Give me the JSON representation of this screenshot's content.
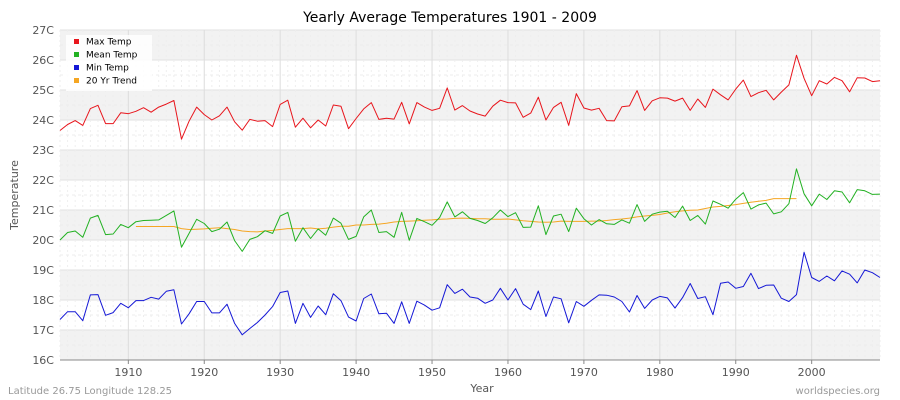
{
  "chart_data": {
    "type": "line",
    "title": "Yearly Average Temperatures 1901 - 2009",
    "xlabel": "Year",
    "ylabel": "Temperature",
    "xlim": [
      1901,
      2009
    ],
    "ylim": [
      16,
      27
    ],
    "x_ticks": [
      1910,
      1920,
      1930,
      1940,
      1950,
      1960,
      1970,
      1980,
      1990,
      2000
    ],
    "y_ticks": [
      "16C",
      "17C",
      "18C",
      "19C",
      "20C",
      "21C",
      "22C",
      "23C",
      "24C",
      "25C",
      "26C",
      "27C"
    ],
    "grid": true,
    "legend_position": "top-left",
    "series": [
      {
        "name": "Max Temp",
        "color": "#e8151c",
        "values": [
          23.65,
          23.85,
          23.98,
          23.82,
          24.38,
          24.49,
          23.88,
          23.88,
          24.24,
          24.21,
          24.29,
          24.41,
          24.26,
          24.43,
          24.53,
          24.65,
          23.36,
          23.96,
          24.43,
          24.18,
          24.0,
          24.14,
          24.43,
          23.94,
          23.66,
          24.02,
          23.96,
          23.98,
          23.78,
          24.52,
          24.66,
          23.76,
          24.06,
          23.74,
          24.0,
          23.8,
          24.5,
          24.46,
          23.71,
          24.05,
          24.37,
          24.58,
          24.02,
          24.06,
          24.03,
          24.59,
          23.87,
          24.58,
          24.43,
          24.32,
          24.39,
          25.07,
          24.33,
          24.48,
          24.3,
          24.2,
          24.13,
          24.46,
          24.66,
          24.58,
          24.57,
          24.09,
          24.23,
          24.76,
          24.0,
          24.42,
          24.59,
          23.82,
          24.88,
          24.4,
          24.33,
          24.39,
          23.98,
          23.97,
          24.44,
          24.47,
          24.98,
          24.32,
          24.64,
          24.74,
          24.73,
          24.63,
          24.73,
          24.32,
          24.7,
          24.42,
          25.03,
          24.84,
          24.67,
          25.03,
          25.33,
          24.78,
          24.91,
          24.99,
          24.67,
          24.93,
          25.17,
          26.16,
          25.39,
          24.81,
          25.31,
          25.2,
          25.42,
          25.31,
          24.94,
          25.41,
          25.4,
          25.28,
          25.31
        ]
      },
      {
        "name": "Mean Temp",
        "color": "#22b122",
        "values": [
          20.0,
          20.25,
          20.3,
          20.09,
          20.73,
          20.82,
          20.18,
          20.2,
          20.52,
          20.41,
          20.61,
          20.65,
          20.66,
          20.67,
          20.82,
          20.97,
          19.76,
          20.22,
          20.69,
          20.55,
          20.28,
          20.36,
          20.6,
          19.98,
          19.62,
          20.02,
          20.11,
          20.31,
          20.22,
          20.8,
          20.92,
          19.96,
          20.41,
          20.05,
          20.37,
          20.16,
          20.73,
          20.56,
          20.02,
          20.12,
          20.77,
          21.0,
          20.25,
          20.28,
          20.09,
          20.92,
          19.99,
          20.72,
          20.61,
          20.49,
          20.75,
          21.27,
          20.77,
          20.94,
          20.72,
          20.65,
          20.55,
          20.74,
          21.0,
          20.78,
          20.91,
          20.42,
          20.43,
          21.14,
          20.18,
          20.8,
          20.86,
          20.28,
          21.06,
          20.71,
          20.5,
          20.68,
          20.54,
          20.52,
          20.67,
          20.56,
          21.18,
          20.62,
          20.86,
          20.93,
          20.96,
          20.75,
          21.13,
          20.65,
          20.82,
          20.53,
          21.3,
          21.19,
          21.06,
          21.36,
          21.58,
          21.03,
          21.17,
          21.23,
          20.87,
          20.94,
          21.21,
          22.37,
          21.54,
          21.14,
          21.53,
          21.35,
          21.64,
          21.6,
          21.24,
          21.68,
          21.64,
          21.52,
          21.53
        ]
      },
      {
        "name": "Min Temp",
        "color": "#1518d6",
        "values": [
          17.35,
          17.61,
          17.61,
          17.31,
          18.17,
          18.18,
          17.49,
          17.58,
          17.89,
          17.74,
          17.98,
          17.98,
          18.09,
          18.03,
          18.29,
          18.34,
          17.2,
          17.54,
          17.95,
          17.95,
          17.57,
          17.57,
          17.86,
          17.22,
          16.84,
          17.05,
          17.25,
          17.5,
          17.78,
          18.25,
          18.3,
          17.22,
          17.89,
          17.42,
          17.8,
          17.51,
          18.21,
          17.98,
          17.43,
          17.3,
          18.05,
          18.2,
          17.54,
          17.56,
          17.22,
          17.94,
          17.22,
          17.96,
          17.83,
          17.66,
          17.74,
          18.51,
          18.22,
          18.36,
          18.1,
          18.06,
          17.89,
          18.0,
          18.39,
          18.0,
          18.38,
          17.86,
          17.68,
          18.3,
          17.45,
          18.1,
          18.04,
          17.24,
          17.95,
          17.79,
          17.99,
          18.17,
          18.16,
          18.1,
          17.95,
          17.6,
          18.15,
          17.72,
          18.0,
          18.12,
          18.07,
          17.73,
          18.08,
          18.55,
          18.05,
          18.11,
          17.51,
          18.56,
          18.6,
          18.39,
          18.45,
          18.89,
          18.38,
          18.49,
          18.5,
          18.06,
          17.95,
          18.18,
          19.59,
          18.75,
          18.62,
          18.8,
          18.64,
          18.97,
          18.86,
          18.57,
          19.0,
          18.91,
          18.75
        ]
      },
      {
        "name": "20 Yr Trend",
        "color": "#f5a623",
        "start_year": 1911,
        "values": [
          20.45,
          20.45,
          20.45,
          20.45,
          20.45,
          20.45,
          20.38,
          20.35,
          20.36,
          20.37,
          20.39,
          20.41,
          20.38,
          20.35,
          20.3,
          20.28,
          20.27,
          20.3,
          20.32,
          20.35,
          20.38,
          20.38,
          20.38,
          20.4,
          20.37,
          20.39,
          20.43,
          20.46,
          20.46,
          20.5,
          20.5,
          20.52,
          20.53,
          20.56,
          20.6,
          20.62,
          20.63,
          20.64,
          20.66,
          20.67,
          20.69,
          20.7,
          20.72,
          20.73,
          20.72,
          20.71,
          20.71,
          20.69,
          20.69,
          20.7,
          20.67,
          20.64,
          20.62,
          20.6,
          20.59,
          20.6,
          20.63,
          20.62,
          20.62,
          20.62,
          20.63,
          20.63,
          20.65,
          20.68,
          20.7,
          20.73,
          20.77,
          20.8,
          20.82,
          20.85,
          20.9,
          20.94,
          20.97,
          20.99,
          21.0,
          21.05,
          21.1,
          21.12,
          21.15,
          21.18,
          21.22,
          21.26,
          21.29,
          21.32,
          21.38,
          21.38,
          21.38,
          21.38
        ]
      }
    ]
  },
  "footer": {
    "location": "Latitude 26.75 Longitude 128.25",
    "source": "worldspecies.org"
  }
}
